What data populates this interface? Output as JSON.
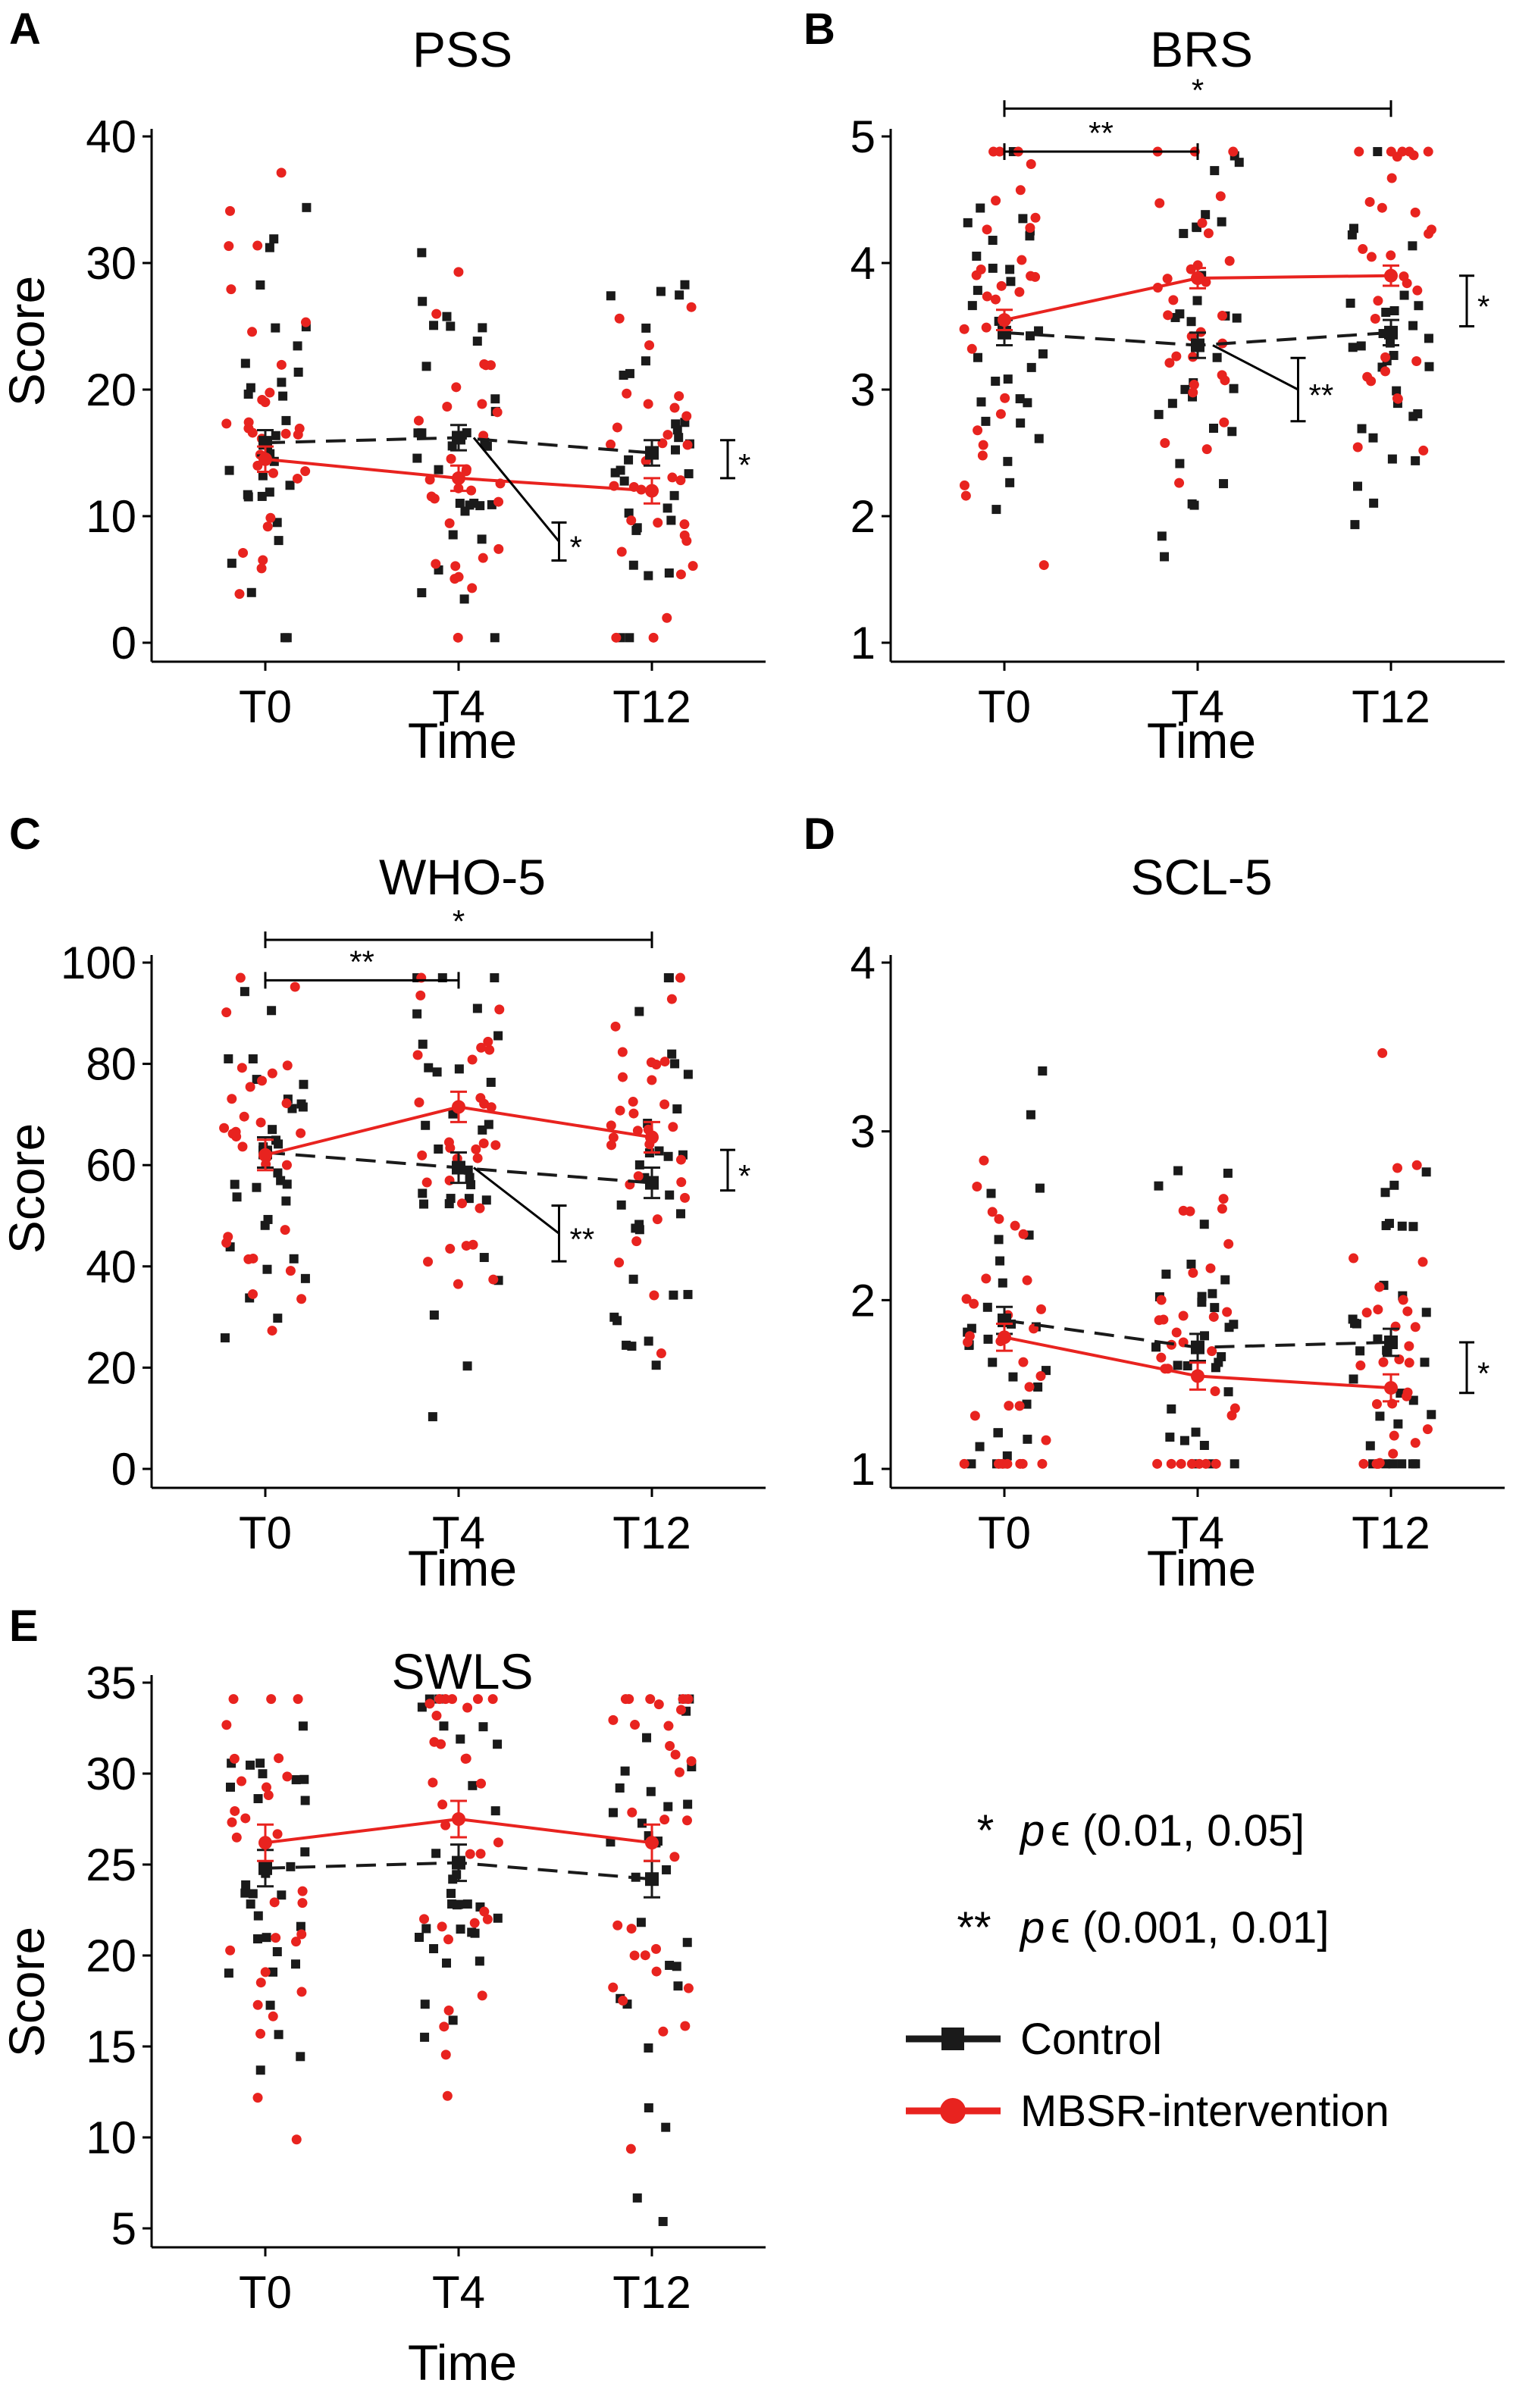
{
  "legend": {
    "sig1_mark": "*",
    "sig1_p": "p",
    "sig1_text": "ϵ (0.01, 0.05]",
    "sig2_mark": "**",
    "sig2_p": "p",
    "sig2_text": "ϵ (0.001, 0.01]",
    "control_label": "Control",
    "mbsr_label": "MBSR-intervention",
    "control_color": "#1a1a1a",
    "mbsr_color": "#e8231f"
  },
  "chart_data": [
    {
      "panel": "A",
      "title": "PSS",
      "type": "scatter",
      "xlabel": "Time",
      "ylabel": "Score",
      "categories": [
        "T0",
        "T4",
        "T12"
      ],
      "ylim": [
        0,
        40
      ],
      "yticks": [
        0,
        10,
        20,
        30,
        40
      ],
      "series": [
        {
          "name": "Control",
          "means": [
            15.8,
            16.2,
            15.0
          ],
          "se": [
            1.0,
            1.0,
            1.0
          ]
        },
        {
          "name": "MBSR-intervention",
          "means": [
            14.5,
            13.0,
            12.0
          ],
          "se": [
            1.0,
            1.0,
            1.0
          ]
        }
      ],
      "brackets": [],
      "interaction": [
        {
          "label": "*",
          "y_from": 13.0,
          "y_to": 16.0
        },
        {
          "label": "*",
          "y_from": 6.5,
          "y_to": 9.5
        }
      ]
    },
    {
      "panel": "B",
      "title": "BRS",
      "type": "scatter",
      "xlabel": "Time",
      "ylabel": "",
      "categories": [
        "T0",
        "T4",
        "T12"
      ],
      "ylim": [
        1,
        5
      ],
      "yticks": [
        1,
        2,
        3,
        4,
        5
      ],
      "series": [
        {
          "name": "Control",
          "means": [
            3.45,
            3.35,
            3.45
          ],
          "se": [
            0.1,
            0.1,
            0.1
          ]
        },
        {
          "name": "MBSR-intervention",
          "means": [
            3.55,
            3.88,
            3.9
          ],
          "se": [
            0.08,
            0.08,
            0.08
          ]
        }
      ],
      "brackets": [
        {
          "from": 0,
          "to": 1,
          "label": "**",
          "y": 4.88
        },
        {
          "from": 0,
          "to": 2,
          "label": "*",
          "y": 5.22
        }
      ],
      "interaction": [
        {
          "label": "*",
          "y_from": 3.5,
          "y_to": 3.9
        },
        {
          "label": "**",
          "y_from": 2.75,
          "y_to": 3.25
        }
      ]
    },
    {
      "panel": "C",
      "title": "WHO-5",
      "type": "scatter",
      "xlabel": "Time",
      "ylabel": "Score",
      "categories": [
        "T0",
        "T4",
        "T12"
      ],
      "ylim": [
        0,
        100
      ],
      "yticks": [
        0,
        20,
        40,
        60,
        80,
        100
      ],
      "series": [
        {
          "name": "Control",
          "means": [
            62.5,
            59.5,
            56.5
          ],
          "se": [
            3.0,
            3.0,
            3.0
          ]
        },
        {
          "name": "MBSR-intervention",
          "means": [
            62.0,
            71.5,
            65.5
          ],
          "se": [
            3.0,
            3.0,
            3.0
          ]
        }
      ],
      "brackets": [
        {
          "from": 0,
          "to": 1,
          "label": "**",
          "y": 96.5
        },
        {
          "from": 0,
          "to": 2,
          "label": "*",
          "y": 104.5
        }
      ],
      "interaction": [
        {
          "label": "*",
          "y_from": 55.0,
          "y_to": 63.0
        },
        {
          "label": "**",
          "y_from": 41.0,
          "y_to": 52.0
        }
      ]
    },
    {
      "panel": "D",
      "title": "SCL-5",
      "type": "scatter",
      "xlabel": "Time",
      "ylabel": "",
      "categories": [
        "T0",
        "T4",
        "T12"
      ],
      "ylim": [
        1,
        4
      ],
      "yticks": [
        1,
        2,
        3,
        4
      ],
      "series": [
        {
          "name": "Control",
          "means": [
            1.88,
            1.72,
            1.75
          ],
          "se": [
            0.08,
            0.08,
            0.08
          ]
        },
        {
          "name": "MBSR-intervention",
          "means": [
            1.78,
            1.55,
            1.48
          ],
          "se": [
            0.08,
            0.08,
            0.08
          ]
        }
      ],
      "brackets": [],
      "interaction": [
        {
          "label": "*",
          "y_from": 1.45,
          "y_to": 1.75
        }
      ]
    },
    {
      "panel": "E",
      "title": "SWLS",
      "type": "scatter",
      "xlabel": "Time",
      "ylabel": "Score",
      "categories": [
        "T0",
        "T4",
        "T12"
      ],
      "ylim": [
        5,
        35
      ],
      "yticks": [
        5,
        10,
        15,
        20,
        25,
        30,
        35
      ],
      "series": [
        {
          "name": "Control",
          "means": [
            24.8,
            25.1,
            24.2
          ],
          "se": [
            1.0,
            1.0,
            1.0
          ]
        },
        {
          "name": "MBSR-intervention",
          "means": [
            26.2,
            27.5,
            26.2
          ],
          "se": [
            1.0,
            1.0,
            1.0
          ]
        }
      ],
      "brackets": [],
      "interaction": []
    }
  ]
}
